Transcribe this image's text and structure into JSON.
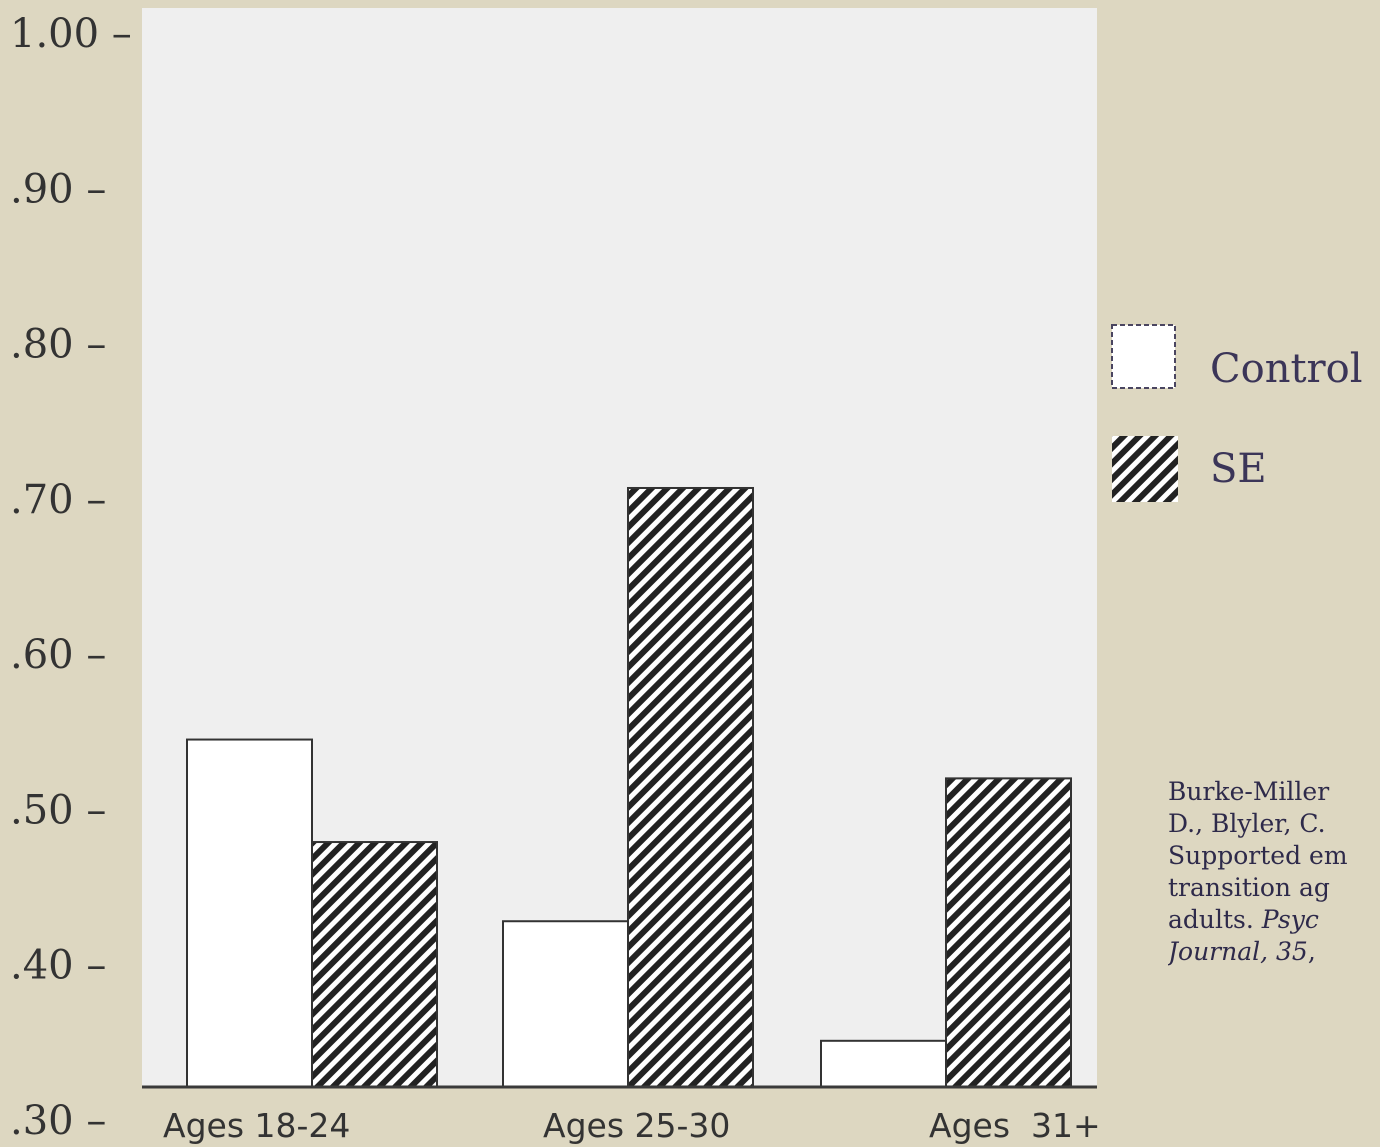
{
  "chart_data": {
    "type": "bar",
    "title": "",
    "xlabel": "",
    "ylabel": "",
    "ylim": [
      0.3,
      1.0
    ],
    "y_ticks": [
      1.0,
      0.9,
      0.8,
      0.7,
      0.6,
      0.5,
      0.4,
      0.3
    ],
    "y_tick_labels": [
      "1.00 –",
      ".90 –",
      ".80 –",
      ".70 –",
      ".60 –",
      ".50 –",
      ".40 –",
      ".30 –"
    ],
    "categories": [
      "Ages 18-24",
      "Ages 25-30",
      "Ages  31+"
    ],
    "series": [
      {
        "name": "Control",
        "values": [
          0.545,
          0.428,
          0.351
        ]
      },
      {
        "name": "SE",
        "values": [
          0.479,
          0.707,
          0.52
        ]
      }
    ],
    "legend_position": "right",
    "grid": false,
    "colors": {
      "background": "#ddd7c1",
      "plot_area": "#efefef",
      "control_fill": "#ffffff",
      "se_fill": "#222222",
      "text": "#333333"
    }
  },
  "citation": {
    "line1": "Burke-Miller",
    "line2": "D., Blyler, C.",
    "line3": "Supported em",
    "line4": "transition ag",
    "line5_plain": "adults. ",
    "line5_ital": "Psyc",
    "line6_ital": "Journal, 35",
    "line6_plain": ","
  }
}
